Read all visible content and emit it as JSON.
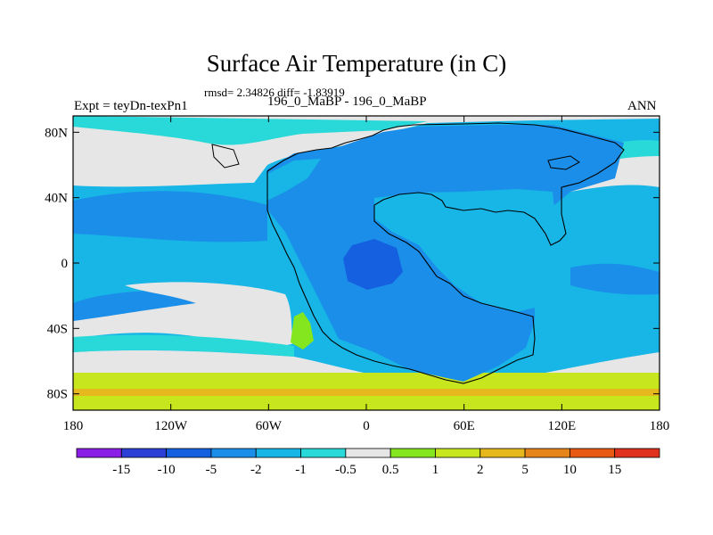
{
  "header": {
    "title": "Surface Air Temperature (in C)",
    "stats": "rmsd= 2.34826 diff= -1.83919",
    "experiment": "Expt = teyDn-texPn1",
    "period": "196_0_MaBP - 196_0_MaBP",
    "season": "ANN"
  },
  "chart_data": {
    "type": "heatmap",
    "title": "Surface Air Temperature (in C)",
    "subtitle": "196_0_MaBP - 196_0_MaBP",
    "xlabel": "",
    "ylabel": "",
    "xlim": [
      -180,
      180
    ],
    "ylim": [
      -90,
      90
    ],
    "x_ticks": [
      -180,
      -120,
      -60,
      0,
      60,
      120,
      180
    ],
    "x_tick_labels": [
      "180",
      "120W",
      "60W",
      "0",
      "60E",
      "120E",
      "180"
    ],
    "y_ticks": [
      80,
      40,
      0,
      -40,
      -80
    ],
    "y_tick_labels": [
      "80N",
      "40N",
      "0",
      "40S",
      "80S"
    ],
    "colorbar": {
      "boundaries": [
        -15,
        -10,
        -5,
        -2,
        -1,
        -0.5,
        0.5,
        1,
        2,
        5,
        10,
        15
      ],
      "labels": [
        "-15",
        "-10",
        "-5",
        "-2",
        "-1",
        "-0.5",
        "0.5",
        "1",
        "2",
        "5",
        "10",
        "15"
      ],
      "colors": [
        "#8a1ee6",
        "#2b3fd6",
        "#1560e0",
        "#1a8ee8",
        "#17b6e6",
        "#29d8d8",
        "#e6e6e6",
        "#84e61e",
        "#c8e61e",
        "#e6b81e",
        "#e6861a",
        "#e85a14",
        "#e0301e"
      ]
    },
    "regions": [
      {
        "name": "ocean-background",
        "level": "-2 to -1"
      },
      {
        "name": "supercontinent-interior",
        "level": "-5 to -2"
      },
      {
        "name": "eastern-basin",
        "level": "-2 to -1"
      },
      {
        "name": "interior-cold-core",
        "level": "-10 to -5"
      },
      {
        "name": "north-high-latitude-band",
        "level": "-0.5 to 0.5"
      },
      {
        "name": "southern-ocean-band",
        "level": "-0.5 to 0.5"
      },
      {
        "name": "south-polar-band",
        "level": "1 to 2"
      },
      {
        "name": "south-polar-warm-strip",
        "level": "2 to 5"
      },
      {
        "name": "southeast-land-warm",
        "level": "1 to 2"
      }
    ],
    "overlay": "coastline"
  }
}
